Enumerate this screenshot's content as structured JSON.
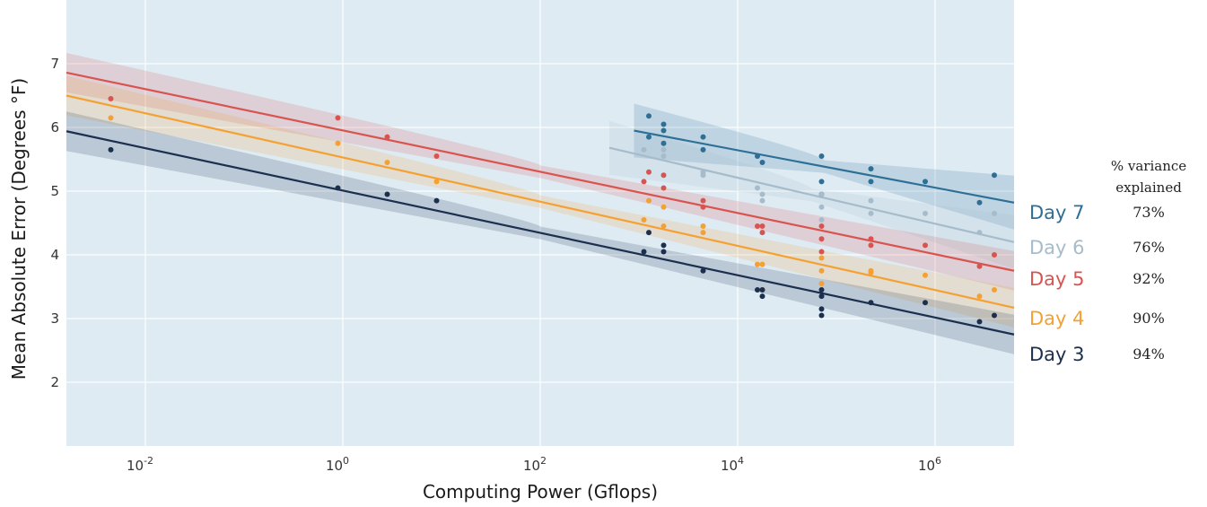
{
  "chart_data": {
    "type": "scatter",
    "xlabel": "Computing Power (Gflops)",
    "ylabel": "Mean Absolute Error (Degrees °F)",
    "xscale": "log",
    "xlim_log10": [
      -2.8,
      6.8
    ],
    "ylim": [
      1.0,
      8.0
    ],
    "x_ticks": [
      {
        "exp": "-2",
        "base": "10"
      },
      {
        "exp": "0",
        "base": "10"
      },
      {
        "exp": "2",
        "base": "10"
      },
      {
        "exp": "4",
        "base": "10"
      },
      {
        "exp": "6",
        "base": "10"
      }
    ],
    "y_ticks": [
      2,
      3,
      4,
      5,
      6,
      7
    ],
    "grid": true,
    "legend_header": [
      "% variance",
      "explained"
    ],
    "series": [
      {
        "name": "Day 7",
        "variance": "73%",
        "color": "#2e6f96",
        "fit": [
          [
            2.95,
            5.95
          ],
          [
            6.8,
            4.82
          ]
        ],
        "points": [
          [
            3.1,
            6.18
          ],
          [
            3.25,
            6.05
          ],
          [
            3.25,
            5.95
          ],
          [
            3.1,
            5.85
          ],
          [
            3.25,
            5.75
          ],
          [
            3.65,
            5.85
          ],
          [
            3.65,
            5.65
          ],
          [
            4.2,
            5.55
          ],
          [
            4.25,
            5.45
          ],
          [
            4.85,
            5.55
          ],
          [
            4.85,
            5.15
          ],
          [
            4.85,
            4.95
          ],
          [
            5.35,
            5.35
          ],
          [
            5.35,
            5.15
          ],
          [
            5.9,
            5.15
          ],
          [
            6.45,
            4.82
          ],
          [
            6.6,
            5.25
          ]
        ]
      },
      {
        "name": "Day 6",
        "variance": "76%",
        "color": "#a6bccb",
        "fit": [
          [
            2.7,
            5.68
          ],
          [
            6.8,
            4.2
          ]
        ],
        "points": [
          [
            3.05,
            5.65
          ],
          [
            3.25,
            5.65
          ],
          [
            3.25,
            5.55
          ],
          [
            3.65,
            5.3
          ],
          [
            3.65,
            5.25
          ],
          [
            4.2,
            5.05
          ],
          [
            4.25,
            4.95
          ],
          [
            4.25,
            4.85
          ],
          [
            4.85,
            4.95
          ],
          [
            4.85,
            4.75
          ],
          [
            4.85,
            4.55
          ],
          [
            5.35,
            4.85
          ],
          [
            5.35,
            4.65
          ],
          [
            5.9,
            4.65
          ],
          [
            6.45,
            4.35
          ],
          [
            6.6,
            4.65
          ]
        ]
      },
      {
        "name": "Day 5",
        "variance": "92%",
        "color": "#d9534f",
        "fit": [
          [
            -2.8,
            6.86
          ],
          [
            6.8,
            3.75
          ]
        ],
        "points": [
          [
            -2.35,
            6.45
          ],
          [
            -0.05,
            6.15
          ],
          [
            0.45,
            5.85
          ],
          [
            0.95,
            5.55
          ],
          [
            3.05,
            5.15
          ],
          [
            3.1,
            5.3
          ],
          [
            3.25,
            5.25
          ],
          [
            3.25,
            5.05
          ],
          [
            3.65,
            4.85
          ],
          [
            3.65,
            4.75
          ],
          [
            4.2,
            4.45
          ],
          [
            4.25,
            4.45
          ],
          [
            4.25,
            4.35
          ],
          [
            4.85,
            4.45
          ],
          [
            4.85,
            4.25
          ],
          [
            4.85,
            4.05
          ],
          [
            5.35,
            4.25
          ],
          [
            5.35,
            4.15
          ],
          [
            5.9,
            4.15
          ],
          [
            6.45,
            3.82
          ],
          [
            6.6,
            4.0
          ]
        ]
      },
      {
        "name": "Day 4",
        "variance": "90%",
        "color": "#f5a030",
        "fit": [
          [
            -2.8,
            6.5
          ],
          [
            6.8,
            3.17
          ]
        ],
        "points": [
          [
            -2.35,
            6.15
          ],
          [
            -0.05,
            5.75
          ],
          [
            0.45,
            5.45
          ],
          [
            0.95,
            5.15
          ],
          [
            3.05,
            4.55
          ],
          [
            3.1,
            4.85
          ],
          [
            3.25,
            4.75
          ],
          [
            3.25,
            4.45
          ],
          [
            3.65,
            4.45
          ],
          [
            3.65,
            4.35
          ],
          [
            4.2,
            3.85
          ],
          [
            4.25,
            3.85
          ],
          [
            4.25,
            3.45
          ],
          [
            4.85,
            3.95
          ],
          [
            4.85,
            3.75
          ],
          [
            4.85,
            3.55
          ],
          [
            5.35,
            3.75
          ],
          [
            5.35,
            3.72
          ],
          [
            5.9,
            3.68
          ],
          [
            6.45,
            3.35
          ],
          [
            6.6,
            3.45
          ]
        ]
      },
      {
        "name": "Day 3",
        "variance": "94%",
        "color": "#1b2f4f",
        "fit": [
          [
            -2.8,
            5.94
          ],
          [
            6.8,
            2.75
          ]
        ],
        "points": [
          [
            -2.35,
            5.65
          ],
          [
            -0.05,
            5.05
          ],
          [
            0.45,
            4.95
          ],
          [
            0.95,
            4.85
          ],
          [
            3.05,
            4.05
          ],
          [
            3.1,
            4.35
          ],
          [
            3.25,
            4.15
          ],
          [
            3.25,
            4.05
          ],
          [
            3.65,
            3.75
          ],
          [
            4.2,
            3.45
          ],
          [
            4.25,
            3.45
          ],
          [
            4.25,
            3.35
          ],
          [
            4.85,
            3.45
          ],
          [
            4.85,
            3.35
          ],
          [
            4.85,
            3.15
          ],
          [
            4.85,
            3.05
          ],
          [
            5.35,
            3.25
          ],
          [
            5.9,
            3.25
          ],
          [
            6.45,
            2.95
          ],
          [
            6.6,
            3.05
          ]
        ]
      }
    ]
  }
}
